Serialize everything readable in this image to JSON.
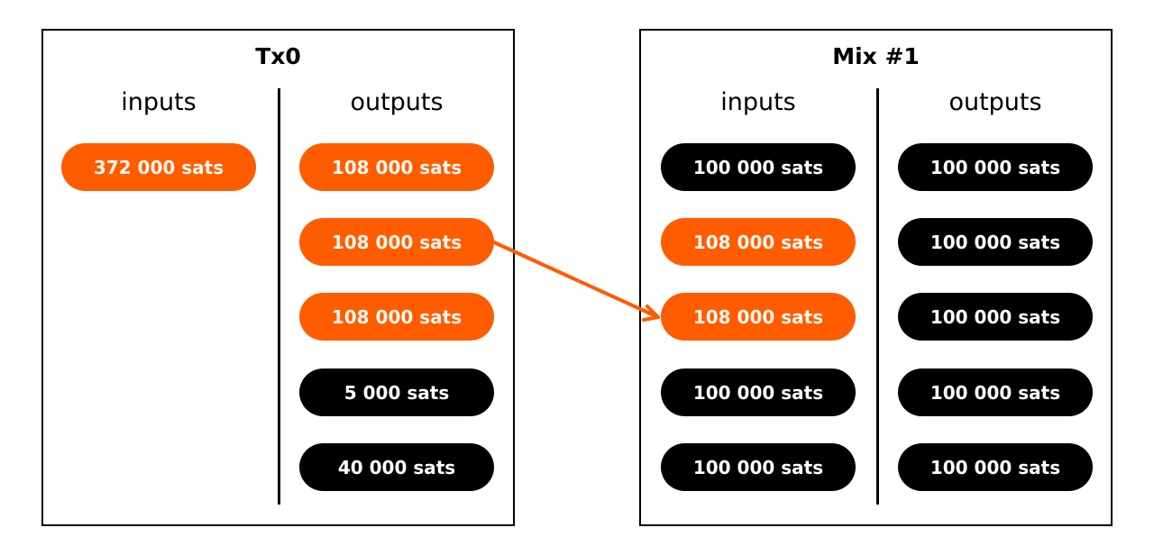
{
  "colors": {
    "orange": "#FF5C00",
    "black": "#000000"
  },
  "tx0": {
    "title": "Tx0",
    "inputs_label": "inputs",
    "outputs_label": "outputs",
    "inputs": [
      {
        "label": "372 000 sats",
        "color": "orange"
      }
    ],
    "outputs": [
      {
        "label": "108 000 sats",
        "color": "orange"
      },
      {
        "label": "108 000 sats",
        "color": "orange"
      },
      {
        "label": "108 000 sats",
        "color": "orange"
      },
      {
        "label": "5 000 sats",
        "color": "black"
      },
      {
        "label": "40 000 sats",
        "color": "black"
      }
    ]
  },
  "mix1": {
    "title": "Mix #1",
    "inputs_label": "inputs",
    "outputs_label": "outputs",
    "inputs": [
      {
        "label": "100 000 sats",
        "color": "black"
      },
      {
        "label": "108 000 sats",
        "color": "orange"
      },
      {
        "label": "108 000 sats",
        "color": "orange"
      },
      {
        "label": "100 000 sats",
        "color": "black"
      },
      {
        "label": "100 000 sats",
        "color": "black"
      }
    ],
    "outputs": [
      {
        "label": "100 000 sats",
        "color": "black"
      },
      {
        "label": "100 000 sats",
        "color": "black"
      },
      {
        "label": "100 000 sats",
        "color": "black"
      },
      {
        "label": "100 000 sats",
        "color": "black"
      },
      {
        "label": "100 000 sats",
        "color": "black"
      }
    ]
  },
  "arrow": {
    "from": "tx0.outputs.1",
    "to": "mix1.inputs.2"
  }
}
